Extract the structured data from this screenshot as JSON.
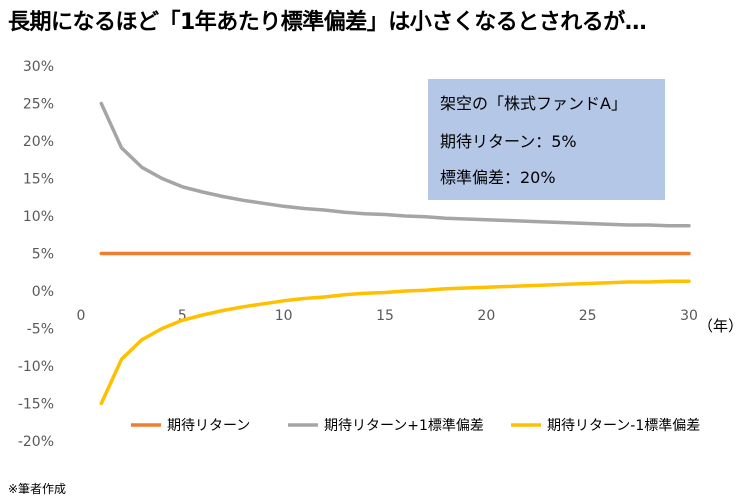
{
  "title": "長期になるほど「1年あたり標準偏差」は小さくなるとされるが…",
  "footnote": "※筆者作成",
  "annotation": {
    "lines": [
      "架空の「株式ファンドA」",
      "期待リターン：5%",
      "標準偏差：20%"
    ],
    "background": "#b4c7e7"
  },
  "chart_data": {
    "type": "line",
    "x_unit_label": "（年）",
    "ylim": [
      -20,
      30
    ],
    "y_ticks": [
      {
        "value": 30,
        "label": "30%"
      },
      {
        "value": 25,
        "label": "25%"
      },
      {
        "value": 20,
        "label": "20%"
      },
      {
        "value": 15,
        "label": "15%"
      },
      {
        "value": 10,
        "label": "10%"
      },
      {
        "value": 5,
        "label": "5%"
      },
      {
        "value": 0,
        "label": "0%"
      },
      {
        "value": -5,
        "label": "-5%"
      },
      {
        "value": -10,
        "label": "-10%"
      },
      {
        "value": -15,
        "label": "-15%"
      },
      {
        "value": -20,
        "label": "-20%"
      }
    ],
    "x_ticks": [
      {
        "value": 0,
        "label": "0"
      },
      {
        "value": 5,
        "label": "5"
      },
      {
        "value": 10,
        "label": "10"
      },
      {
        "value": 15,
        "label": "15"
      },
      {
        "value": 20,
        "label": "20"
      },
      {
        "value": 25,
        "label": "25"
      },
      {
        "value": 30,
        "label": "30"
      }
    ],
    "xlim": [
      0,
      30
    ],
    "grid": false,
    "legend_position": "bottom",
    "x": [
      1,
      2,
      3,
      4,
      5,
      6,
      7,
      8,
      9,
      10,
      11,
      12,
      13,
      14,
      15,
      16,
      17,
      18,
      19,
      20,
      21,
      22,
      23,
      24,
      25,
      26,
      27,
      28,
      29,
      30
    ],
    "series": [
      {
        "name": "期待リターン",
        "color": "#ed7d31",
        "values": [
          5,
          5,
          5,
          5,
          5,
          5,
          5,
          5,
          5,
          5,
          5,
          5,
          5,
          5,
          5,
          5,
          5,
          5,
          5,
          5,
          5,
          5,
          5,
          5,
          5,
          5,
          5,
          5,
          5,
          5
        ]
      },
      {
        "name": "期待リターン+1標準偏差",
        "color": "#a5a5a5",
        "values": [
          25,
          19.1,
          16.5,
          15,
          13.9,
          13.2,
          12.6,
          12.1,
          11.7,
          11.3,
          11,
          10.8,
          10.5,
          10.3,
          10.2,
          10,
          9.9,
          9.7,
          9.6,
          9.5,
          9.4,
          9.3,
          9.2,
          9.1,
          9,
          8.9,
          8.8,
          8.8,
          8.7,
          8.7
        ]
      },
      {
        "name": "期待リターン-1標準偏差",
        "color": "#ffc000",
        "values": [
          -15,
          -9.1,
          -6.5,
          -5,
          -3.9,
          -3.2,
          -2.6,
          -2.1,
          -1.7,
          -1.3,
          -1,
          -0.8,
          -0.5,
          -0.3,
          -0.2,
          0,
          0.1,
          0.3,
          0.4,
          0.5,
          0.6,
          0.7,
          0.8,
          0.9,
          1,
          1.1,
          1.2,
          1.2,
          1.3,
          1.3
        ]
      }
    ]
  }
}
